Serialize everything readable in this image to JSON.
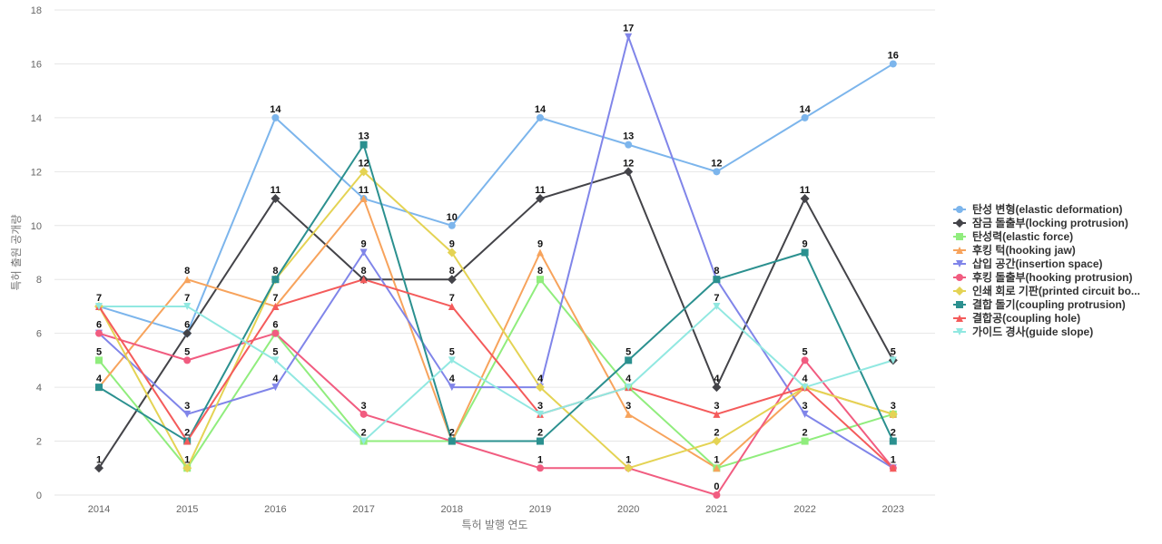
{
  "chart_data": {
    "type": "line",
    "title": "",
    "xlabel": "특허 발행 연도",
    "ylabel": "특허 출원 공개량",
    "x": [
      "2014",
      "2015",
      "2016",
      "2017",
      "2018",
      "2019",
      "2020",
      "2021",
      "2022",
      "2023"
    ],
    "yticks": [
      "0",
      "2",
      "4",
      "6",
      "8",
      "10",
      "12",
      "14",
      "16",
      "18"
    ],
    "ylim": [
      0,
      18
    ],
    "grid": "horizontal",
    "legend_position": "right",
    "data_labels": true,
    "series": [
      {
        "name": "탄성 변형(elastic deformation)",
        "color": "#7cb5ec",
        "marker": "circle",
        "values": [
          7,
          6,
          14,
          11,
          10,
          14,
          13,
          12,
          14,
          16
        ]
      },
      {
        "name": "잠금 돌출부(locking protrusion)",
        "color": "#434348",
        "marker": "diamond",
        "values": [
          1,
          6,
          11,
          8,
          8,
          11,
          12,
          4,
          11,
          5
        ]
      },
      {
        "name": "탄성력(elastic force)",
        "color": "#90ed7d",
        "marker": "square",
        "values": [
          5,
          1,
          6,
          2,
          2,
          8,
          4,
          1,
          2,
          3
        ]
      },
      {
        "name": "후킹 턱(hooking jaw)",
        "color": "#f7a35c",
        "marker": "triangle",
        "values": [
          4,
          8,
          7,
          11,
          2,
          9,
          3,
          1,
          4,
          3
        ]
      },
      {
        "name": "삽입 공간(insertion space)",
        "color": "#8085e9",
        "marker": "triangle-down",
        "values": [
          6,
          3,
          4,
          9,
          4,
          4,
          17,
          8,
          3,
          1
        ]
      },
      {
        "name": "후킹 돌출부(hooking protrusion)",
        "color": "#f15c80",
        "marker": "circle",
        "values": [
          6,
          5,
          6,
          3,
          2,
          1,
          1,
          0,
          5,
          1
        ]
      },
      {
        "name": "인쇄 회로 기판(printed circuit bo...",
        "color": "#e4d354",
        "marker": "diamond",
        "values": [
          7,
          1,
          8,
          12,
          9,
          4,
          1,
          2,
          4,
          3
        ]
      },
      {
        "name": "결합 돌기(coupling protrusion)",
        "color": "#2b908f",
        "marker": "square",
        "values": [
          4,
          2,
          8,
          13,
          2,
          2,
          5,
          8,
          9,
          2
        ]
      },
      {
        "name": "결합공(coupling hole)",
        "color": "#f45b5b",
        "marker": "triangle",
        "values": [
          7,
          2,
          7,
          8,
          7,
          3,
          4,
          3,
          4,
          1
        ]
      },
      {
        "name": "가이드 경사(guide slope)",
        "color": "#91e8e1",
        "marker": "triangle-down",
        "values": [
          7,
          7,
          5,
          2,
          5,
          3,
          4,
          7,
          4,
          5
        ]
      }
    ],
    "point_labels": [
      {
        "x": "2014",
        "value": 7
      },
      {
        "x": "2014",
        "value": 6
      },
      {
        "x": "2014",
        "value": 5
      },
      {
        "x": "2014",
        "value": 4
      },
      {
        "x": "2014",
        "value": 1
      },
      {
        "x": "2015",
        "value": 8
      },
      {
        "x": "2015",
        "value": 7
      },
      {
        "x": "2015",
        "value": 6
      },
      {
        "x": "2015",
        "value": 5
      },
      {
        "x": "2015",
        "value": 3
      },
      {
        "x": "2015",
        "value": 2
      },
      {
        "x": "2015",
        "value": 1
      },
      {
        "x": "2016",
        "value": 14
      },
      {
        "x": "2016",
        "value": 11
      },
      {
        "x": "2016",
        "value": 8
      },
      {
        "x": "2016",
        "value": 7
      },
      {
        "x": "2016",
        "value": 6
      },
      {
        "x": "2016",
        "value": 5
      },
      {
        "x": "2016",
        "value": 4
      },
      {
        "x": "2017",
        "value": 13
      },
      {
        "x": "2017",
        "value": 12
      },
      {
        "x": "2017",
        "value": 11
      },
      {
        "x": "2017",
        "value": 9
      },
      {
        "x": "2017",
        "value": 8
      },
      {
        "x": "2017",
        "value": 3
      },
      {
        "x": "2017",
        "value": 2
      },
      {
        "x": "2018",
        "value": 10
      },
      {
        "x": "2018",
        "value": 9
      },
      {
        "x": "2018",
        "value": 8
      },
      {
        "x": "2018",
        "value": 7
      },
      {
        "x": "2018",
        "value": 5
      },
      {
        "x": "2018",
        "value": 4
      },
      {
        "x": "2018",
        "value": 2
      },
      {
        "x": "2019",
        "value": 14
      },
      {
        "x": "2019",
        "value": 11
      },
      {
        "x": "2019",
        "value": 9
      },
      {
        "x": "2019",
        "value": 8
      },
      {
        "x": "2019",
        "value": 4
      },
      {
        "x": "2019",
        "value": 3
      },
      {
        "x": "2019",
        "value": 2
      },
      {
        "x": "2019",
        "value": 1
      },
      {
        "x": "2020",
        "value": 17
      },
      {
        "x": "2020",
        "value": 13
      },
      {
        "x": "2020",
        "value": 12
      },
      {
        "x": "2020",
        "value": 5
      },
      {
        "x": "2020",
        "value": 4
      },
      {
        "x": "2020",
        "value": 3
      },
      {
        "x": "2020",
        "value": 1
      },
      {
        "x": "2021",
        "value": 12
      },
      {
        "x": "2021",
        "value": 8
      },
      {
        "x": "2021",
        "value": 7
      },
      {
        "x": "2021",
        "value": 4
      },
      {
        "x": "2021",
        "value": 3
      },
      {
        "x": "2021",
        "value": 2
      },
      {
        "x": "2021",
        "value": 1
      },
      {
        "x": "2021",
        "value": 0
      },
      {
        "x": "2022",
        "value": 14
      },
      {
        "x": "2022",
        "value": 11
      },
      {
        "x": "2022",
        "value": 9
      },
      {
        "x": "2022",
        "value": 5
      },
      {
        "x": "2022",
        "value": 4
      },
      {
        "x": "2022",
        "value": 3
      },
      {
        "x": "2022",
        "value": 2
      },
      {
        "x": "2023",
        "value": 16
      },
      {
        "x": "2023",
        "value": 5
      },
      {
        "x": "2023",
        "value": 3
      },
      {
        "x": "2023",
        "value": 2
      },
      {
        "x": "2023",
        "value": 1
      }
    ]
  }
}
